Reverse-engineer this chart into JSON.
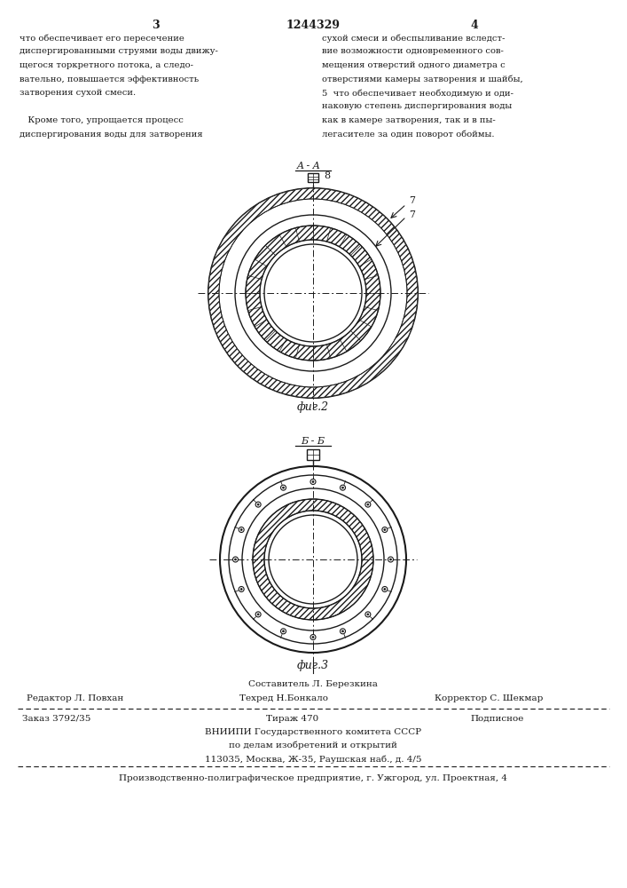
{
  "page_color": "#ffffff",
  "text_color": "#1a1a1a",
  "page_number_left": "3",
  "page_number_center": "1244329",
  "page_number_right": "4",
  "left_col_text": [
    "что обеспечивает его пересечение",
    "диспергированными струями воды движу-",
    "щегося торкретного потока, а следо-",
    "вательно, повышается эффективность",
    "затворения сухой смеси.",
    "",
    "   Кроме того, упрощается процесс",
    "диспергирования воды для затворения"
  ],
  "right_col_text": [
    "сухой смеси и обеспыливание вследст-",
    "вие возможности одновременного сов-",
    "мещения отверстий одного диаметра с",
    "отверстиями камеры затворения и шайбы,",
    "5  что обеспечивает необходимую и оди-",
    "наковую степень диспергирования воды",
    "как в камере затворения, так и в пы-",
    "легасителе за один поворот обоймы."
  ],
  "fig2_label": "фиг.2",
  "fig3_label": "фиг.3",
  "section_aa": "A - A",
  "section_bb": "Б - Б",
  "label_8": "8",
  "label_7a": "7",
  "label_7b": "7",
  "footer_composer": "Составитель Л. Березкина",
  "footer_editor": "Редактор Л. Повхан",
  "footer_techred": "Техред Н.Бонкало",
  "footer_corrector": "Корректор С. Шекмар",
  "footer_order": "Заказ 3792/35",
  "footer_tirazh": "Тираж 470",
  "footer_podpisnoe": "Подписное",
  "footer_vnipi": "ВНИИПИ Государственного комитета СССР",
  "footer_dela": "по делам изобретений и открытий",
  "footer_address": "113035, Москва, Ж-35, Раушская наб., д. 4/5",
  "footer_factory": "Производственно-полиграфическое предприятие, г. Ужгород, ул. Проектная, 4"
}
